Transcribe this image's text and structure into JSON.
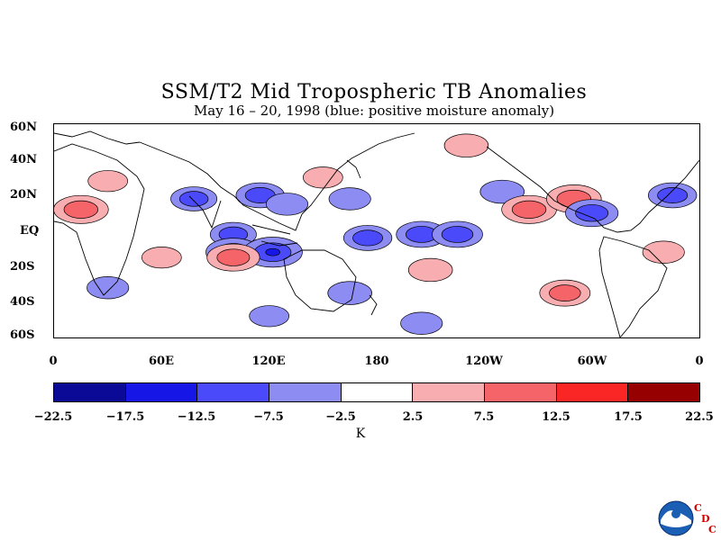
{
  "title": "SSM/T2 Mid Tropospheric TB Anomalies",
  "subtitle": "May 16 – 20, 1998 (blue: positive moisture anomaly)",
  "lat_labels": [
    "60N",
    "40N",
    "20N",
    "EQ",
    "20S",
    "40S",
    "60S"
  ],
  "lon_labels": [
    "0",
    "60E",
    "120E",
    "180",
    "120W",
    "60W",
    "0"
  ],
  "colorbar": {
    "labels": [
      "−22.5",
      "−17.5",
      "−12.5",
      "−7.5",
      "−2.5",
      "2.5",
      "7.5",
      "12.5",
      "17.5",
      "22.5"
    ],
    "colors": [
      "#0a0a96",
      "#1616e6",
      "#4a4afa",
      "#8c8cf2",
      "#ffffff",
      "#f8aeb0",
      "#f46468",
      "#fa2626",
      "#ff0000",
      "#960000"
    ],
    "units": "K"
  },
  "logo": {
    "agency_icon": "noaa-logo-icon",
    "text": [
      "C",
      "D",
      "C"
    ]
  },
  "chart_data": {
    "type": "heatmap",
    "title": "SSM/T2 Mid Tropospheric TB Anomalies",
    "subtitle": "May 16 – 20, 1998 (blue: positive moisture anomaly)",
    "x_ticks": [
      "0",
      "60E",
      "120E",
      "180",
      "120W",
      "60W",
      "0"
    ],
    "x_range_deg": [
      0,
      360
    ],
    "y_ticks": [
      "60N",
      "40N",
      "20N",
      "EQ",
      "20S",
      "40S",
      "60S"
    ],
    "y_range_deg": [
      -60,
      60
    ],
    "levels": [
      -22.5,
      -17.5,
      -12.5,
      -7.5,
      -2.5,
      2.5,
      7.5,
      12.5,
      17.5,
      22.5
    ],
    "units": "K",
    "anomaly_centers": [
      {
        "lon": 15,
        "lat": 12,
        "value": 12
      },
      {
        "lon": 30,
        "lat": 28,
        "value": 5
      },
      {
        "lon": 60,
        "lat": -15,
        "value": 5
      },
      {
        "lon": 100,
        "lat": -2,
        "value": -8
      },
      {
        "lon": 100,
        "lat": -12,
        "value": -12
      },
      {
        "lon": 122,
        "lat": -12,
        "value": -14
      },
      {
        "lon": 100,
        "lat": -15,
        "value": 11
      },
      {
        "lon": 78,
        "lat": 18,
        "value": -8
      },
      {
        "lon": 115,
        "lat": 20,
        "value": -9
      },
      {
        "lon": 130,
        "lat": 15,
        "value": -6
      },
      {
        "lon": 165,
        "lat": 18,
        "value": -6
      },
      {
        "lon": 175,
        "lat": -4,
        "value": -9
      },
      {
        "lon": 205,
        "lat": -2,
        "value": -10
      },
      {
        "lon": 225,
        "lat": -2,
        "value": -10
      },
      {
        "lon": 250,
        "lat": 22,
        "value": -7
      },
      {
        "lon": 265,
        "lat": 12,
        "value": 12
      },
      {
        "lon": 290,
        "lat": 18,
        "value": 12
      },
      {
        "lon": 300,
        "lat": 10,
        "value": -11
      },
      {
        "lon": 345,
        "lat": 20,
        "value": -9
      },
      {
        "lon": 230,
        "lat": 48,
        "value": 7
      },
      {
        "lon": 150,
        "lat": 30,
        "value": 5
      },
      {
        "lon": 210,
        "lat": -22,
        "value": 7
      },
      {
        "lon": 285,
        "lat": -35,
        "value": 10
      },
      {
        "lon": 165,
        "lat": -35,
        "value": -7
      },
      {
        "lon": 30,
        "lat": -32,
        "value": -6
      },
      {
        "lon": 340,
        "lat": -12,
        "value": 6
      },
      {
        "lon": 120,
        "lat": -48,
        "value": -5
      },
      {
        "lon": 205,
        "lat": -52,
        "value": -6
      }
    ]
  }
}
